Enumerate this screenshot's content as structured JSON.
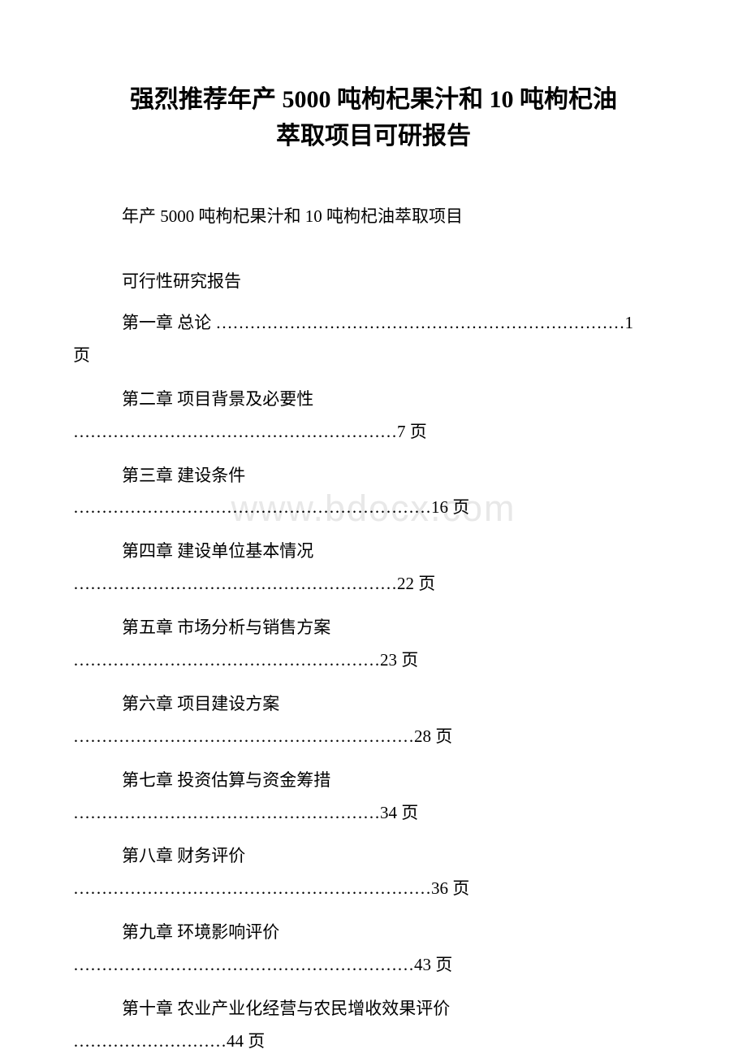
{
  "title": {
    "line1": "强烈推荐年产 5000 吨枸杞果汁和 10 吨枸杞油",
    "line2": "萃取项目可研报告"
  },
  "subtitle": "年产 5000 吨枸杞果汁和 10 吨枸杞油萃取项目",
  "report_type": "可行性研究报告",
  "watermark": "www.bdocx.com",
  "toc": [
    {
      "chapter": "第一章 总论",
      "dots": " ………………………………………………………………1",
      "page_suffix": "页",
      "inline": true
    },
    {
      "chapter": "第二章 项目背景及必要性",
      "dots": "…………………………………………………7 页",
      "inline": false
    },
    {
      "chapter": "第三章 建设条件",
      "dots": "………………………………………………………16 页",
      "inline": false
    },
    {
      "chapter": "第四章 建设单位基本情况",
      "dots": "…………………………………………………22 页",
      "inline": false
    },
    {
      "chapter": "第五章 市场分析与销售方案",
      "dots": "………………………………………………23 页",
      "inline": false
    },
    {
      "chapter": "第六章 项目建设方案",
      "dots": "……………………………………………………28 页",
      "inline": false
    },
    {
      "chapter": "第七章 投资估算与资金筹措",
      "dots": "………………………………………………34 页",
      "inline": false
    },
    {
      "chapter": "第八章 财务评价",
      "dots": "………………………………………………………36 页",
      "inline": false
    },
    {
      "chapter": "第九章 环境影响评价",
      "dots": "……………………………………………………43 页",
      "inline": false
    },
    {
      "chapter": "第十章 农业产业化经营与农民增收效果评价",
      "dots": "………………………44 页",
      "inline": false
    }
  ],
  "colors": {
    "background": "#ffffff",
    "text": "#000000",
    "watermark": "#e8e8e8"
  },
  "typography": {
    "title_fontsize": 30,
    "body_fontsize": 21,
    "font_family": "SimSun"
  }
}
